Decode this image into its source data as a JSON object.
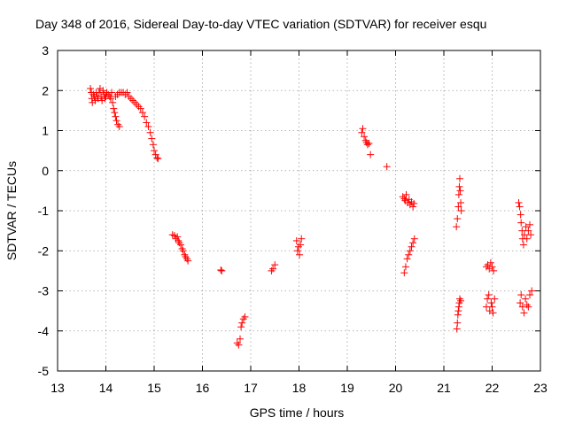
{
  "chart_data": {
    "type": "scatter",
    "title": "Day 348 of 2016, Sidereal Day-to-day VTEC variation (SDTVAR) for receiver esqu",
    "xlabel": "GPS time / hours",
    "ylabel": "SDTVAR / TECUs",
    "xlim": [
      13,
      23
    ],
    "ylim": [
      -5,
      3
    ],
    "xticks": [
      "13",
      "14",
      "15",
      "16",
      "17",
      "18",
      "19",
      "20",
      "21",
      "22",
      "23"
    ],
    "yticks": [
      "-5",
      "-4",
      "-3",
      "-2",
      "-1",
      "0",
      "1",
      "2",
      "3"
    ],
    "grid": true,
    "marker": "+",
    "color": "#ff0000",
    "series": [
      {
        "name": "SDTVAR",
        "points": [
          [
            13.68,
            2.05
          ],
          [
            13.7,
            1.95
          ],
          [
            13.71,
            1.8
          ],
          [
            13.72,
            1.7
          ],
          [
            13.74,
            1.9
          ],
          [
            13.76,
            1.85
          ],
          [
            13.78,
            1.75
          ],
          [
            13.8,
            1.95
          ],
          [
            13.82,
            1.85
          ],
          [
            13.84,
            1.8
          ],
          [
            13.86,
            1.95
          ],
          [
            13.88,
            2.05
          ],
          [
            13.9,
            1.85
          ],
          [
            13.92,
            1.75
          ],
          [
            13.94,
            2.0
          ],
          [
            13.96,
            1.9
          ],
          [
            13.98,
            1.8
          ],
          [
            14.0,
            1.85
          ],
          [
            14.02,
            1.95
          ],
          [
            14.05,
            1.9
          ],
          [
            14.08,
            1.85
          ],
          [
            14.1,
            1.8
          ],
          [
            14.12,
            1.95
          ],
          [
            14.14,
            1.7
          ],
          [
            14.16,
            1.55
          ],
          [
            14.18,
            1.45
          ],
          [
            14.2,
            1.35
          ],
          [
            14.22,
            1.25
          ],
          [
            14.25,
            1.15
          ],
          [
            14.28,
            1.1
          ],
          [
            14.2,
            1.85
          ],
          [
            14.24,
            1.9
          ],
          [
            14.28,
            1.95
          ],
          [
            14.32,
            1.95
          ],
          [
            14.36,
            1.95
          ],
          [
            14.4,
            1.9
          ],
          [
            14.44,
            1.95
          ],
          [
            14.48,
            1.85
          ],
          [
            14.52,
            1.8
          ],
          [
            14.56,
            1.75
          ],
          [
            14.6,
            1.7
          ],
          [
            14.64,
            1.65
          ],
          [
            14.68,
            1.6
          ],
          [
            14.72,
            1.55
          ],
          [
            14.76,
            1.45
          ],
          [
            14.8,
            1.35
          ],
          [
            14.84,
            1.2
          ],
          [
            14.88,
            1.1
          ],
          [
            14.92,
            0.95
          ],
          [
            14.95,
            0.8
          ],
          [
            14.98,
            0.65
          ],
          [
            15.0,
            0.5
          ],
          [
            15.03,
            0.4
          ],
          [
            15.06,
            0.32
          ],
          [
            15.08,
            0.3
          ],
          [
            15.38,
            -1.6
          ],
          [
            15.42,
            -1.62
          ],
          [
            15.45,
            -1.7
          ],
          [
            15.48,
            -1.65
          ],
          [
            15.5,
            -1.75
          ],
          [
            15.52,
            -1.8
          ],
          [
            15.55,
            -1.85
          ],
          [
            15.58,
            -1.95
          ],
          [
            15.6,
            -2.0
          ],
          [
            15.63,
            -2.1
          ],
          [
            15.65,
            -2.15
          ],
          [
            15.68,
            -2.2
          ],
          [
            15.7,
            -2.25
          ],
          [
            16.38,
            -2.48
          ],
          [
            16.4,
            -2.5
          ],
          [
            16.72,
            -4.3
          ],
          [
            16.75,
            -4.35
          ],
          [
            16.78,
            -4.2
          ],
          [
            16.8,
            -3.9
          ],
          [
            16.82,
            -3.8
          ],
          [
            16.85,
            -3.7
          ],
          [
            16.88,
            -3.65
          ],
          [
            17.43,
            -2.5
          ],
          [
            17.46,
            -2.45
          ],
          [
            17.5,
            -2.35
          ],
          [
            17.95,
            -1.75
          ],
          [
            17.97,
            -2.0
          ],
          [
            17.99,
            -1.9
          ],
          [
            18.01,
            -2.1
          ],
          [
            18.03,
            -1.85
          ],
          [
            18.05,
            -1.7
          ],
          [
            19.3,
            0.95
          ],
          [
            19.32,
            1.05
          ],
          [
            19.35,
            0.85
          ],
          [
            19.38,
            0.75
          ],
          [
            19.4,
            0.7
          ],
          [
            19.42,
            0.65
          ],
          [
            19.45,
            0.68
          ],
          [
            19.48,
            0.4
          ],
          [
            19.82,
            0.1
          ],
          [
            20.15,
            -0.65
          ],
          [
            20.18,
            -0.7
          ],
          [
            20.2,
            -0.75
          ],
          [
            20.22,
            -0.6
          ],
          [
            20.25,
            -0.8
          ],
          [
            20.28,
            -0.72
          ],
          [
            20.3,
            -0.85
          ],
          [
            20.33,
            -0.78
          ],
          [
            20.36,
            -0.9
          ],
          [
            20.38,
            -0.82
          ],
          [
            20.18,
            -2.55
          ],
          [
            20.21,
            -2.4
          ],
          [
            20.24,
            -2.2
          ],
          [
            20.27,
            -2.1
          ],
          [
            20.3,
            -2.0
          ],
          [
            20.33,
            -1.9
          ],
          [
            20.36,
            -1.8
          ],
          [
            20.39,
            -1.7
          ],
          [
            21.26,
            -1.4
          ],
          [
            21.28,
            -1.2
          ],
          [
            21.3,
            -0.9
          ],
          [
            21.31,
            -0.6
          ],
          [
            21.32,
            -0.4
          ],
          [
            21.33,
            -0.2
          ],
          [
            21.34,
            -0.5
          ],
          [
            21.35,
            -0.8
          ],
          [
            21.36,
            -1.0
          ],
          [
            21.27,
            -3.95
          ],
          [
            21.28,
            -3.8
          ],
          [
            21.29,
            -3.6
          ],
          [
            21.3,
            -3.5
          ],
          [
            21.31,
            -3.4
          ],
          [
            21.32,
            -3.3
          ],
          [
            21.33,
            -3.2
          ],
          [
            21.35,
            -3.25
          ],
          [
            21.88,
            -2.4
          ],
          [
            21.91,
            -2.35
          ],
          [
            21.94,
            -2.45
          ],
          [
            21.97,
            -2.3
          ],
          [
            22.0,
            -2.4
          ],
          [
            22.03,
            -2.5
          ],
          [
            21.88,
            -3.4
          ],
          [
            21.9,
            -3.2
          ],
          [
            21.93,
            -3.1
          ],
          [
            21.95,
            -3.5
          ],
          [
            21.98,
            -3.3
          ],
          [
            22.0,
            -3.4
          ],
          [
            22.02,
            -3.55
          ],
          [
            22.05,
            -3.2
          ],
          [
            22.55,
            -0.8
          ],
          [
            22.57,
            -0.9
          ],
          [
            22.59,
            -1.1
          ],
          [
            22.6,
            -1.3
          ],
          [
            22.62,
            -1.5
          ],
          [
            22.63,
            -1.7
          ],
          [
            22.65,
            -1.85
          ],
          [
            22.67,
            -1.6
          ],
          [
            22.7,
            -1.4
          ],
          [
            22.72,
            -1.7
          ],
          [
            22.75,
            -1.5
          ],
          [
            22.78,
            -1.35
          ],
          [
            22.8,
            -1.6
          ],
          [
            22.58,
            -3.3
          ],
          [
            22.6,
            -3.1
          ],
          [
            22.63,
            -3.4
          ],
          [
            22.66,
            -3.55
          ],
          [
            22.69,
            -3.2
          ],
          [
            22.72,
            -3.35
          ],
          [
            22.75,
            -3.4
          ],
          [
            22.78,
            -3.1
          ],
          [
            22.82,
            -3.0
          ]
        ]
      }
    ]
  }
}
